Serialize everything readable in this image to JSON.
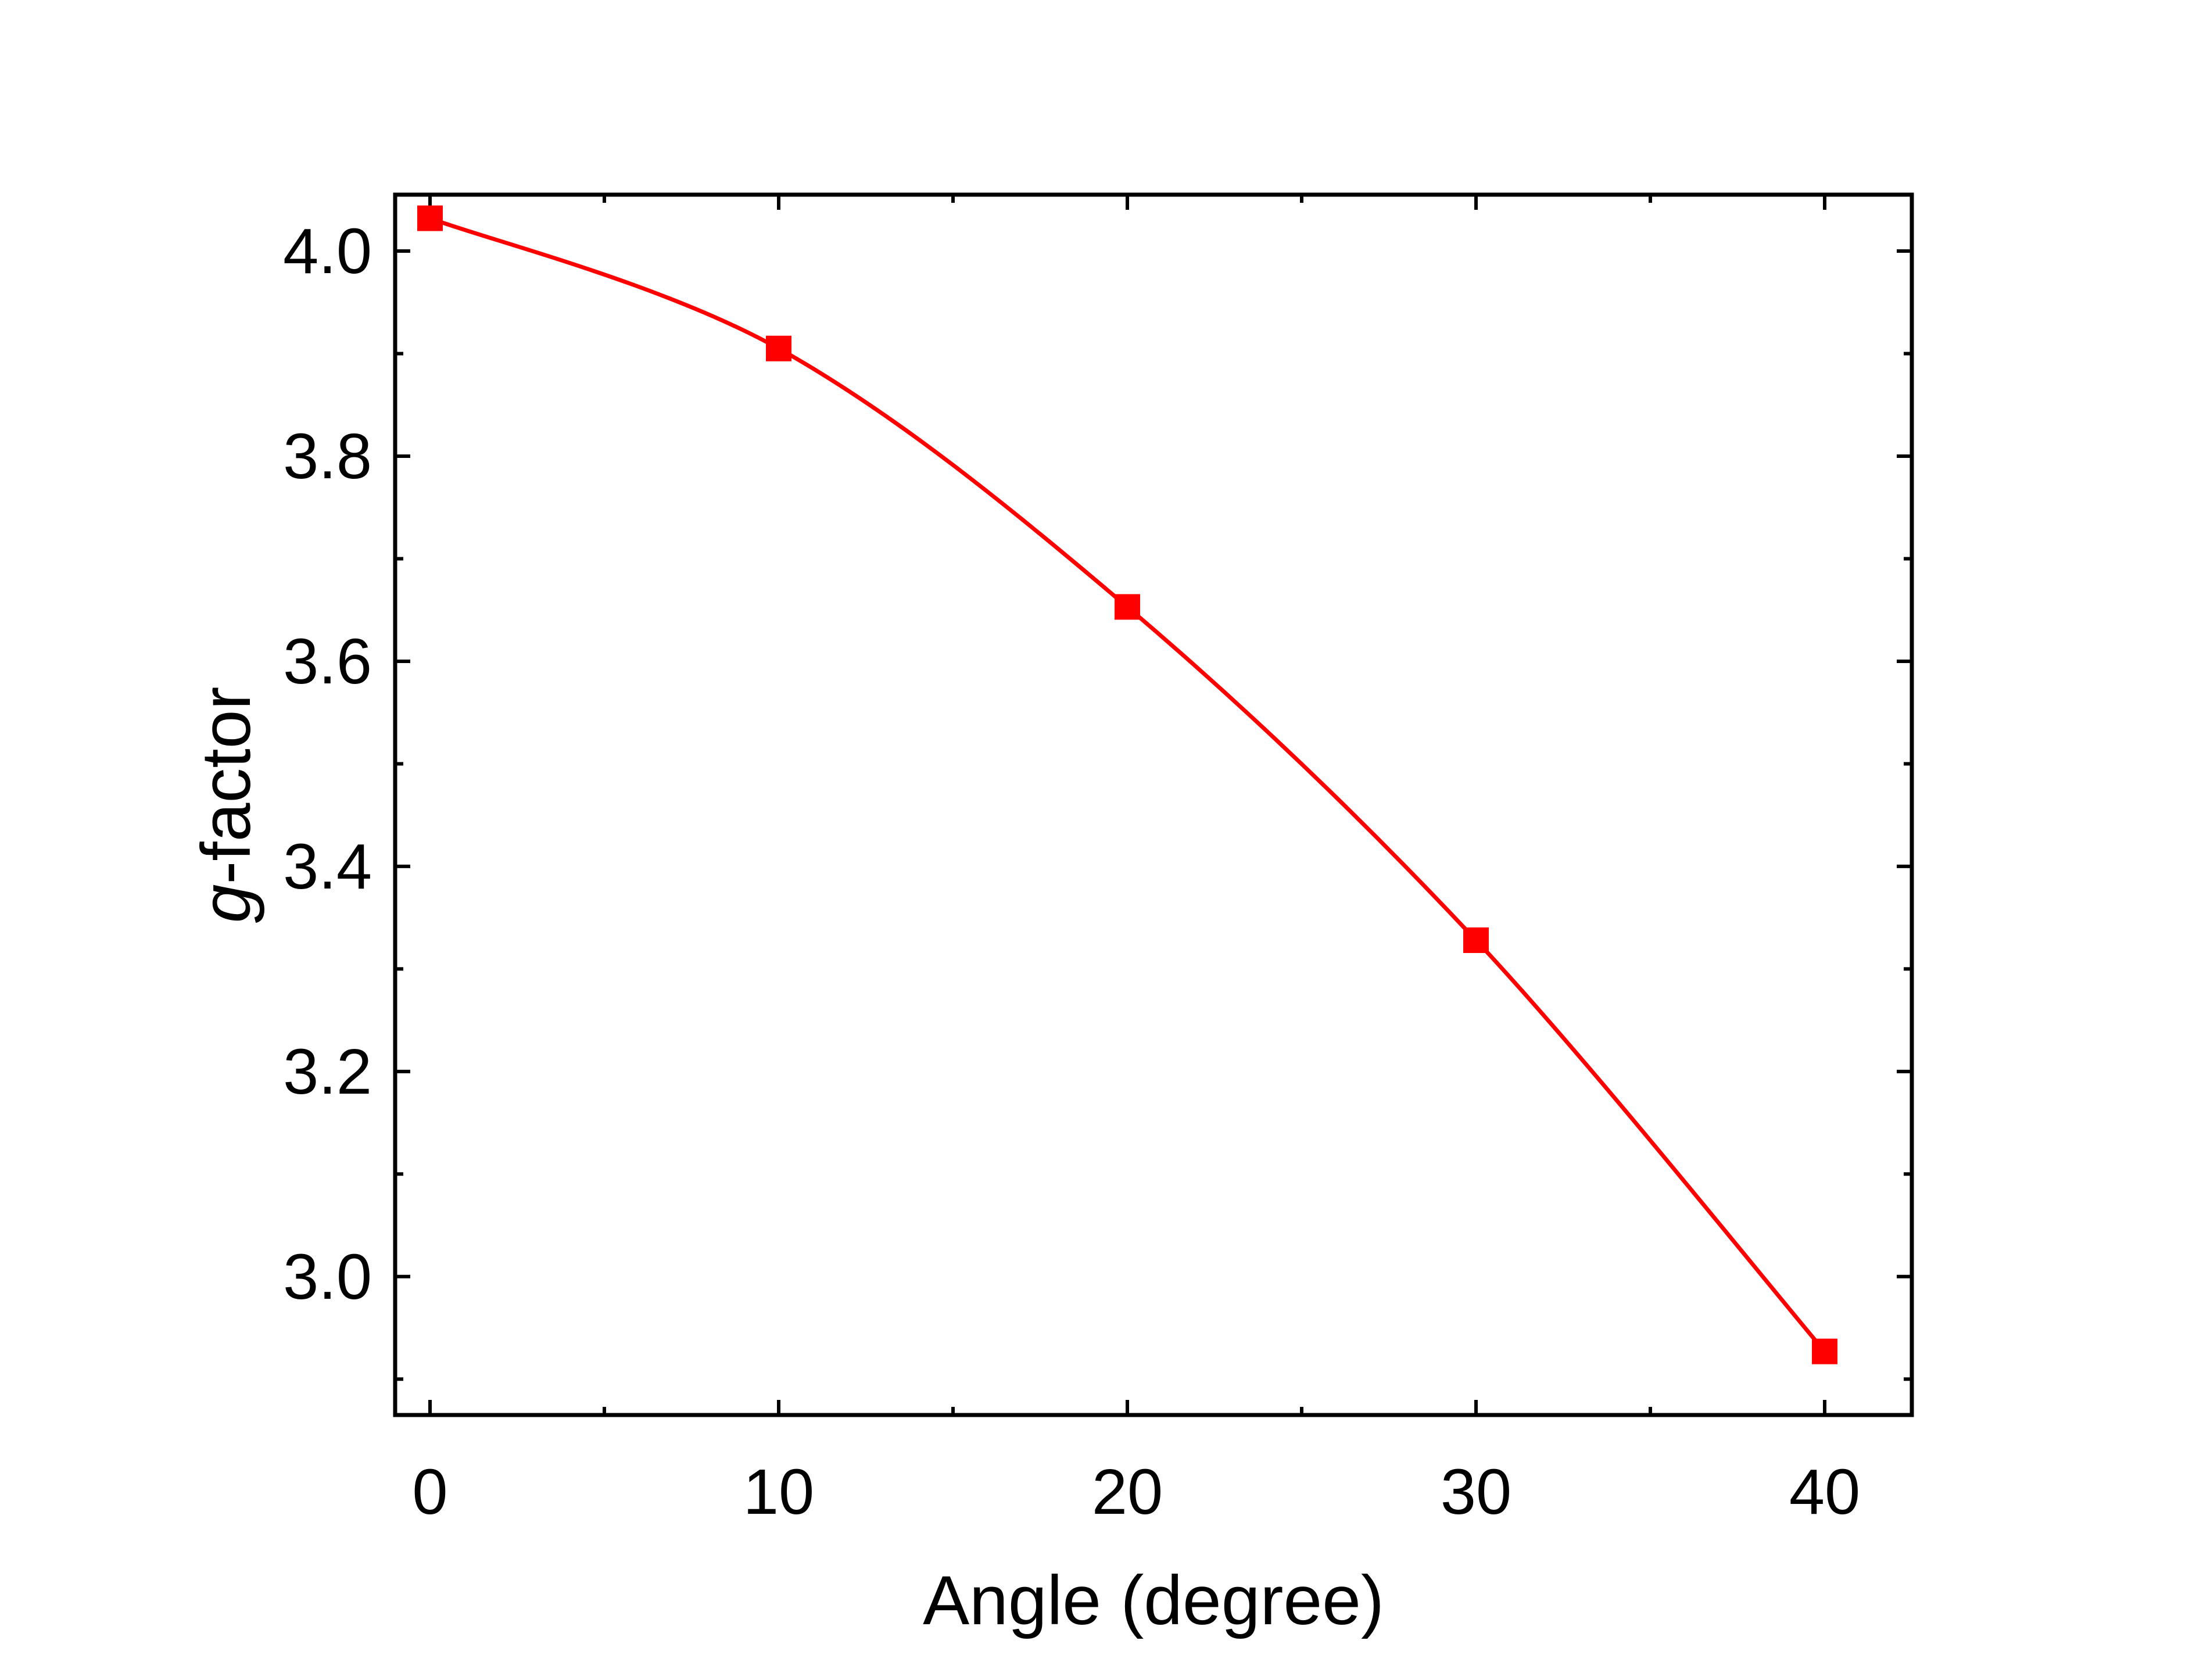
{
  "chart_data": {
    "type": "line",
    "title": "",
    "xlabel": "Angle (degree)",
    "ylabel_italic_part": "g",
    "ylabel_rest": "-factor",
    "xlim": [
      -1,
      42.5
    ],
    "ylim": [
      2.865,
      4.055
    ],
    "xticks": [
      0,
      10,
      20,
      30,
      40
    ],
    "xtick_labels": [
      "0",
      "10",
      "20",
      "30",
      "40"
    ],
    "yticks": [
      3.0,
      3.2,
      3.4,
      3.6,
      3.8,
      4.0
    ],
    "ytick_labels": [
      "3.0",
      "3.2",
      "3.4",
      "3.6",
      "3.8",
      "4.0"
    ],
    "grid": false,
    "legend": "none",
    "series": [
      {
        "marker": "square",
        "color": "#ff0000",
        "x": [
          0,
          10,
          20,
          30,
          40
        ],
        "y": [
          4.032,
          3.905,
          3.653,
          3.328,
          2.927
        ]
      }
    ]
  }
}
